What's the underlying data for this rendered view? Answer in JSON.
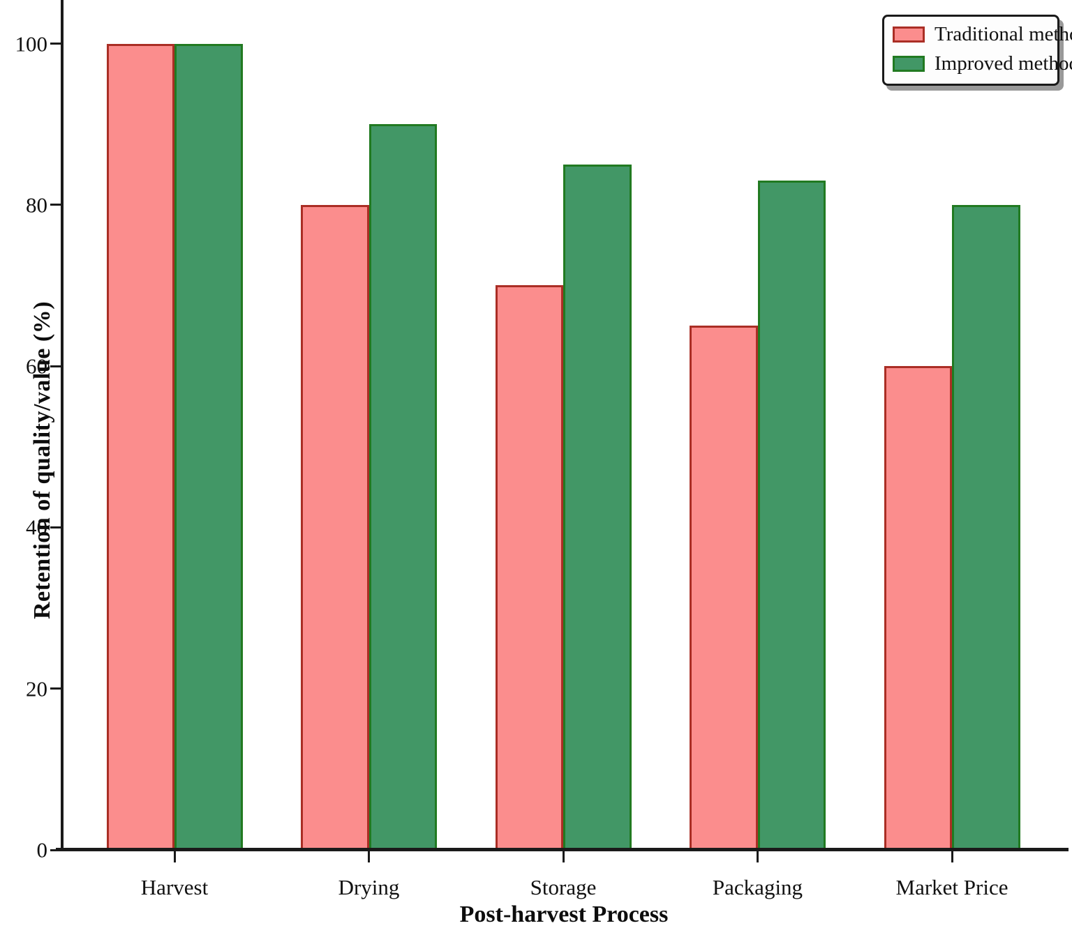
{
  "chart_data": {
    "type": "bar",
    "title": "",
    "categories": [
      "Harvest",
      "Drying",
      "Storage",
      "Packaging",
      "Market Price"
    ],
    "series": [
      {
        "name": "Traditional methods",
        "values": [
          100,
          80,
          70,
          65,
          60
        ],
        "fill_color": "#fb8d8d",
        "border_color": "#aa2e25"
      },
      {
        "name": "Improved methods",
        "values": [
          100,
          90,
          85,
          83,
          80
        ],
        "fill_color": "#429766",
        "border_color": "#217a21"
      }
    ],
    "xlabel": "Post-harvest Process",
    "ylabel": "Retention of quality/value (%)",
    "ylim": [
      0,
      105.5
    ],
    "yticks": [
      0,
      20,
      40,
      60,
      80,
      100
    ],
    "grid": false,
    "legend_position": "upper right"
  },
  "legend": {
    "items": [
      {
        "label": "Traditional methods"
      },
      {
        "label": "Improved methods"
      }
    ]
  }
}
